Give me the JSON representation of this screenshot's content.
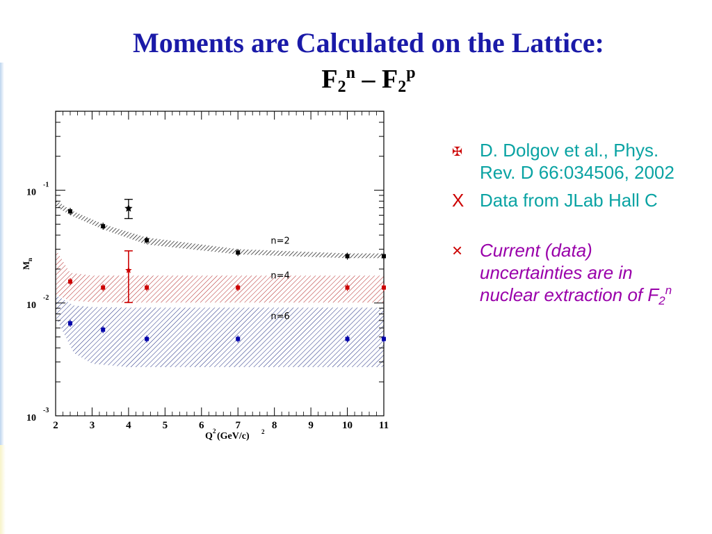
{
  "slide": {
    "title": "Moments are Calculated on the Lattice:",
    "subtitle_base": "F",
    "subtitle_sub": "2",
    "subtitle_sup_n": "n",
    "subtitle_dash": " – ",
    "subtitle_sup_p": "p"
  },
  "bullets": [
    {
      "marker": "✠",
      "text": " D. Dolgov et al., Phys. Rev. D 66:034506, 2002"
    },
    {
      "marker": "X",
      "text": "Data from JLab Hall C"
    },
    {
      "marker": "×",
      "text_main": "Current (data) uncertainties are in nuclear extraction of F",
      "text_sub": "2",
      "text_sup": "n"
    }
  ],
  "colors": {
    "title": "#1a1aa8",
    "n2": "#000000",
    "n4": "#cc0000",
    "n6": "#0000aa",
    "band_n4": "#b22222",
    "band_n6": "#1c2a80"
  },
  "chart_data": {
    "type": "scatter",
    "xlabel": "Q",
    "xlabel_sup": "2",
    "xlabel_units": " (GeV/c)",
    "xlabel_units_sup": "2",
    "ylabel": "M",
    "ylabel_sub": "n",
    "xlim": [
      2,
      11
    ],
    "ylim_log10": [
      -3,
      -0.3
    ],
    "y_scale": "log",
    "x_ticks": [
      2,
      3,
      4,
      5,
      6,
      7,
      8,
      9,
      10,
      11
    ],
    "y_ticks": [
      {
        "exp": -1,
        "base": "10",
        "sup": "-1"
      },
      {
        "exp": -2,
        "base": "10",
        "sup": "-2"
      },
      {
        "exp": -3,
        "base": "10",
        "sup": "-3"
      }
    ],
    "series": [
      {
        "name": "n=2",
        "color": "#000000",
        "x": [
          2.4,
          3.3,
          4.5,
          7,
          10,
          11
        ],
        "y": [
          0.065,
          0.048,
          0.036,
          0.028,
          0.026,
          0.026
        ],
        "band": {
          "x": [
            2,
            2.4,
            3.3,
            4.5,
            7,
            10,
            11
          ],
          "upper": [
            0.082,
            0.067,
            0.05,
            0.038,
            0.03,
            0.0275,
            0.0275
          ],
          "lower": [
            0.072,
            0.06,
            0.045,
            0.033,
            0.027,
            0.025,
            0.025
          ]
        }
      },
      {
        "name": "n=4",
        "color": "#cc0000",
        "x": [
          2.4,
          3.3,
          4.5,
          7,
          10,
          11
        ],
        "y": [
          0.0155,
          0.0137,
          0.0137,
          0.0137,
          0.0137,
          0.0137
        ],
        "band": {
          "x": [
            2,
            2.4,
            3,
            4,
            7,
            10,
            11
          ],
          "upper": [
            0.03,
            0.0185,
            0.0175,
            0.0175,
            0.0175,
            0.0175,
            0.0175
          ],
          "lower": [
            0.0118,
            0.0105,
            0.0102,
            0.0101,
            0.0101,
            0.0101,
            0.0101
          ]
        }
      },
      {
        "name": "n=6",
        "color": "#0000aa",
        "x": [
          2.4,
          3.3,
          4.5,
          7,
          10,
          11
        ],
        "y": [
          0.0066,
          0.0058,
          0.0048,
          0.0048,
          0.0048,
          0.0048
        ],
        "band": {
          "x": [
            2,
            2.5,
            3,
            4,
            7,
            10,
            11
          ],
          "upper": [
            0.0118,
            0.0095,
            0.0092,
            0.0091,
            0.0091,
            0.0091,
            0.0091
          ],
          "lower": [
            0.0075,
            0.0036,
            0.0029,
            0.0027,
            0.0027,
            0.0027,
            0.0027
          ]
        }
      }
    ],
    "jlab_point": {
      "x": 4,
      "y": 0.069,
      "err_hi": 0.083,
      "err_lo": 0.056
    },
    "jlab_point_red": {
      "x": 4,
      "y": 0.0195,
      "err_hi": 0.029,
      "err_lo": 0.0101
    }
  }
}
